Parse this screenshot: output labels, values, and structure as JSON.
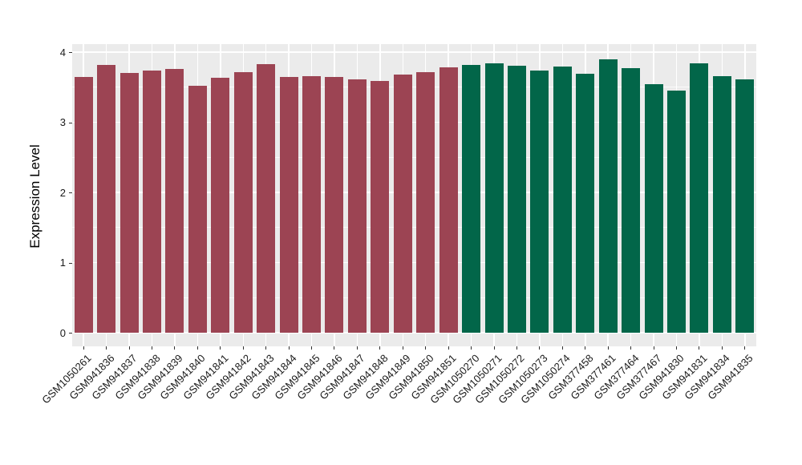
{
  "chart_data": {
    "type": "bar",
    "title": "",
    "xlabel": "",
    "ylabel": "Expression Level",
    "ylim": [
      0,
      4
    ],
    "yticks": [
      0,
      1,
      2,
      3,
      4
    ],
    "grid": true,
    "legend_position": "none",
    "panel_bg_color": "#EBEBEB",
    "gridline_color": "#FFFFFF",
    "axis_text_color": "#1a1a1a",
    "categories": [
      "GSM1050261",
      "GSM941836",
      "GSM941837",
      "GSM941838",
      "GSM941839",
      "GSM941840",
      "GSM941841",
      "GSM941842",
      "GSM941843",
      "GSM941844",
      "GSM941845",
      "GSM941846",
      "GSM941847",
      "GSM941848",
      "GSM941849",
      "GSM941850",
      "GSM941851",
      "GSM1050270",
      "GSM1050271",
      "GSM1050272",
      "GSM1050273",
      "GSM1050274",
      "GSM377458",
      "GSM377461",
      "GSM377464",
      "GSM377467",
      "GSM941830",
      "GSM941831",
      "GSM941834",
      "GSM941835"
    ],
    "values": [
      3.65,
      3.82,
      3.7,
      3.74,
      3.76,
      3.52,
      3.63,
      3.71,
      3.83,
      3.65,
      3.66,
      3.65,
      3.61,
      3.59,
      3.68,
      3.72,
      3.78,
      3.82,
      3.84,
      3.81,
      3.74,
      3.79,
      3.69,
      3.9,
      3.77,
      3.54,
      3.45,
      3.84,
      3.66,
      3.61
    ],
    "groups": [
      0,
      0,
      0,
      0,
      0,
      0,
      0,
      0,
      0,
      0,
      0,
      0,
      0,
      0,
      0,
      0,
      0,
      1,
      1,
      1,
      1,
      1,
      1,
      1,
      1,
      1,
      1,
      1,
      1,
      1
    ],
    "group_colors": [
      "#9C4453",
      "#026649"
    ]
  }
}
